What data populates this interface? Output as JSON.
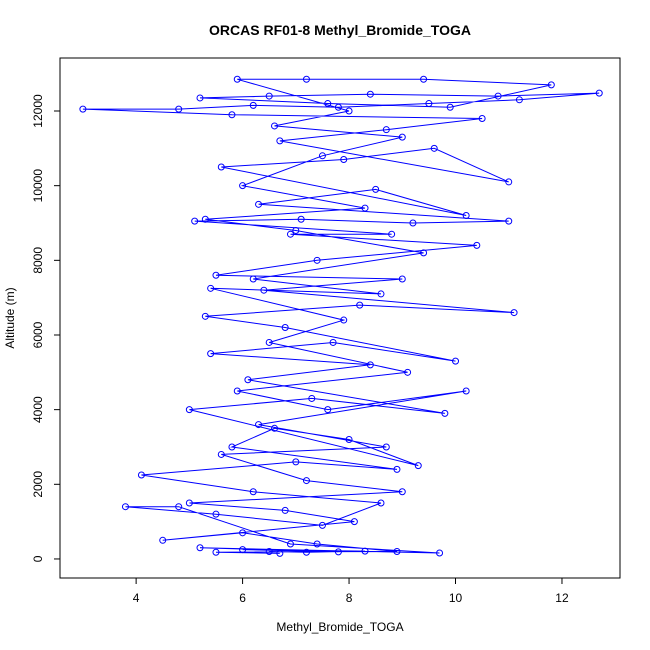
{
  "chart_data": {
    "type": "line",
    "title": "ORCAS RF01-8 Methyl_Bromide_TOGA",
    "xlabel": "Methyl_Bromide_TOGA",
    "ylabel": "Altitude (m)",
    "color": "#0000ff",
    "xlim": [
      2.57,
      13.09
    ],
    "ylim": [
      -510,
      13420
    ],
    "xticks": [
      4,
      6,
      8,
      10,
      12
    ],
    "yticks": [
      0,
      2000,
      4000,
      6000,
      8000,
      10000,
      12000
    ],
    "x": [
      6.5,
      7.2,
      8.3,
      6.0,
      7.8,
      5.2,
      9.7,
      6.9,
      4.8,
      3.8,
      5.5,
      7.5,
      8.6,
      6.2,
      4.1,
      7.0,
      8.9,
      5.8,
      6.6,
      8.0,
      9.3,
      5.0,
      7.3,
      9.8,
      6.1,
      8.4,
      5.4,
      7.7,
      10.0,
      6.8,
      5.3,
      8.2,
      11.1,
      6.4,
      9.0,
      5.5,
      7.4,
      10.4,
      6.9,
      8.8,
      5.1,
      7.1,
      9.2,
      11.0,
      6.3,
      8.5,
      10.2,
      5.6,
      7.9,
      9.6,
      11.0,
      6.7,
      8.7,
      10.5,
      5.8,
      3.0,
      4.8,
      6.2,
      7.8,
      9.5,
      11.2,
      12.7,
      10.8,
      8.4,
      6.5,
      5.2,
      7.6,
      9.9,
      11.8,
      9.4,
      7.2,
      5.9,
      8.0,
      6.6,
      9.0,
      7.5,
      6.0,
      8.3,
      5.3,
      7.0,
      9.4,
      6.2,
      8.6,
      5.4,
      7.9,
      6.5,
      9.1,
      5.9,
      7.6,
      10.2,
      6.3,
      8.7,
      5.6,
      7.2,
      9.0,
      5.0,
      6.8,
      8.1,
      4.5,
      6.0,
      7.4,
      8.9,
      5.5,
      6.7
    ],
    "y": [
      200,
      180,
      210,
      250,
      190,
      300,
      160,
      400,
      1400,
      1400,
      1200,
      900,
      1500,
      1800,
      2250,
      2600,
      2400,
      3000,
      3500,
      3200,
      2500,
      4000,
      4300,
      3900,
      4800,
      5200,
      5500,
      5800,
      5300,
      6200,
      6500,
      6800,
      6600,
      7200,
      7500,
      7600,
      8000,
      8400,
      8700,
      8700,
      9050,
      9100,
      9000,
      9050,
      9500,
      9900,
      9200,
      10500,
      10700,
      11000,
      10100,
      11200,
      11500,
      11800,
      11900,
      12050,
      12050,
      12150,
      12100,
      12200,
      12300,
      12480,
      12400,
      12450,
      12400,
      12350,
      12200,
      12100,
      12700,
      12850,
      12850,
      12850,
      12000,
      11600,
      11300,
      10800,
      10000,
      9400,
      9100,
      8800,
      8200,
      7500,
      7100,
      7250,
      6400,
      5800,
      5000,
      4500,
      4000,
      4500,
      3600,
      3000,
      2800,
      2100,
      1800,
      1500,
      1300,
      1000,
      500,
      700,
      400,
      200,
      180,
      150
    ]
  }
}
